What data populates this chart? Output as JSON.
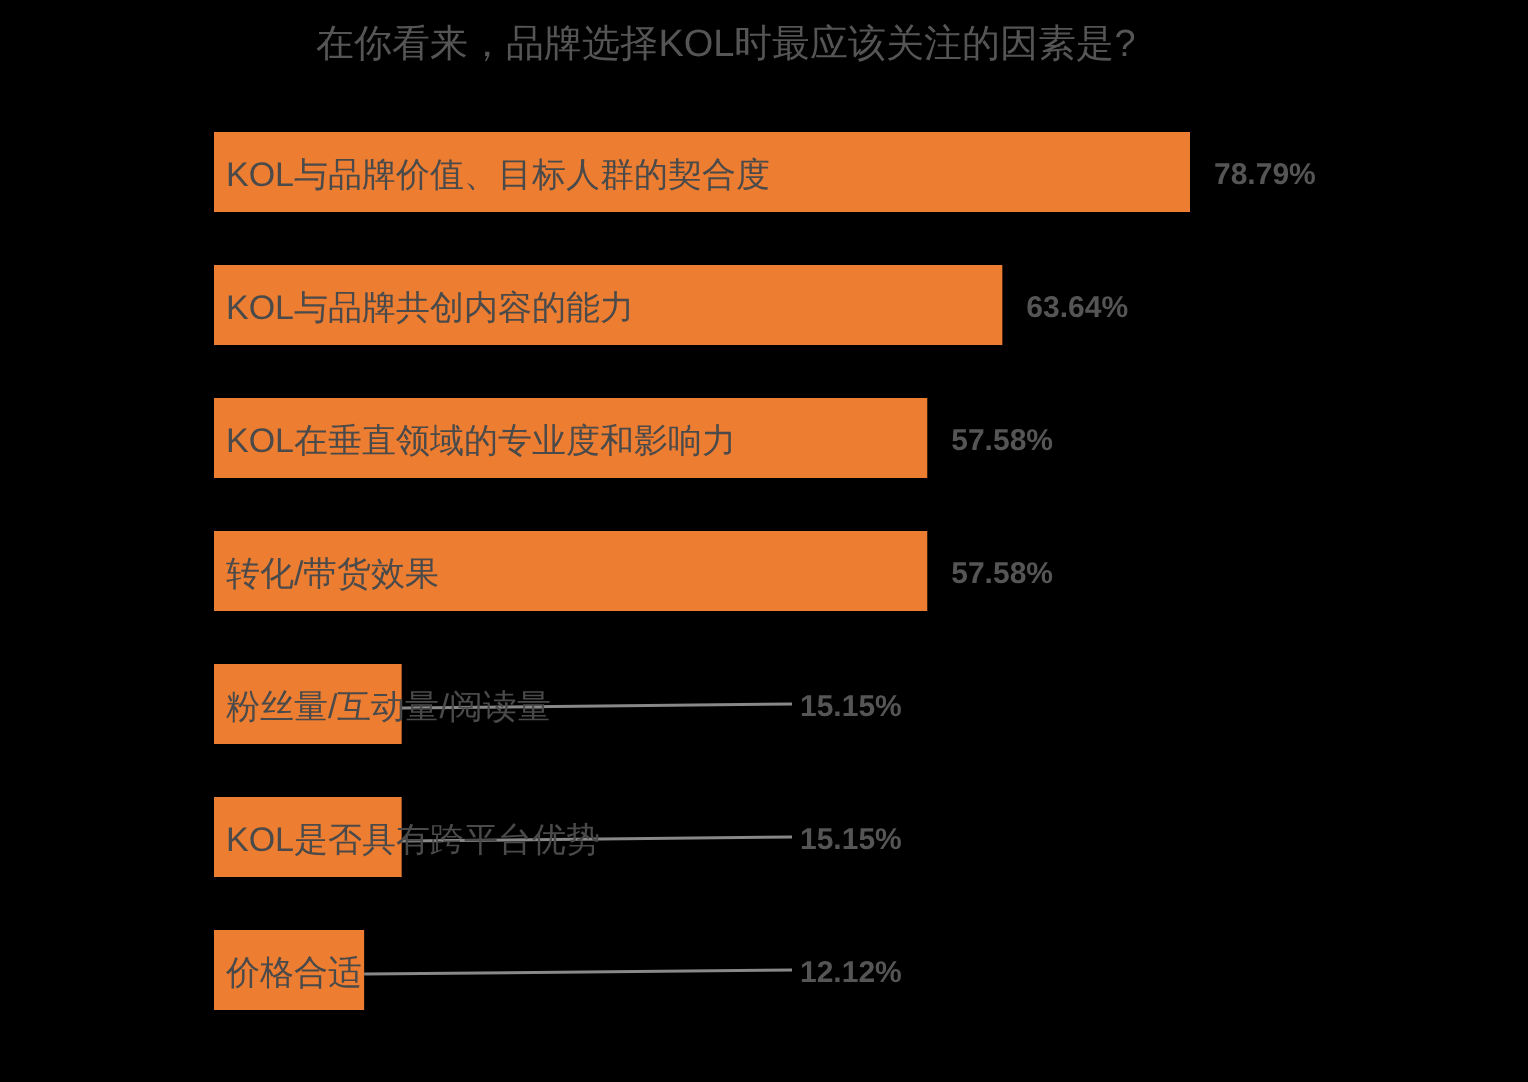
{
  "chart_data": {
    "type": "bar",
    "orientation": "horizontal",
    "title": "在你看来，品牌选择KOL时最应该关注的因素是?",
    "categories": [
      "KOL与品牌价值、目标人群的契合度",
      "KOL与品牌共创内容的能力",
      "KOL在垂直领域的专业度和影响力",
      "转化/带货效果",
      "粉丝量/互动量/阅读量",
      "KOL是否具有跨平台优势",
      "价格合适"
    ],
    "values": [
      78.79,
      63.64,
      57.58,
      57.58,
      15.15,
      15.15,
      12.12
    ],
    "value_labels": [
      "78.79%",
      "63.64%",
      "57.58%",
      "57.58%",
      "15.15%",
      "15.15%",
      "12.12%"
    ],
    "color": "#ed7d31"
  }
}
